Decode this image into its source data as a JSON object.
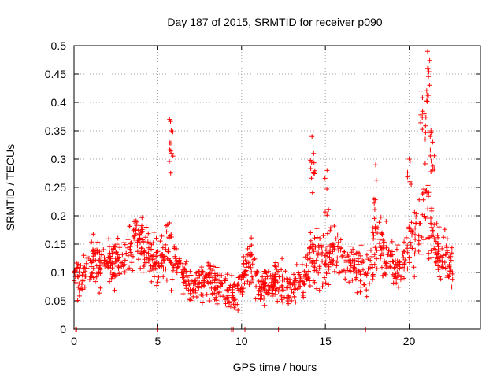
{
  "chart_data": {
    "type": "scatter",
    "title": "Day 187 of 2015, SRMTID for receiver p090",
    "xlabel": "GPS time / hours",
    "ylabel": "SRMTID / TECUs",
    "xlim": [
      0,
      24.25
    ],
    "ylim": [
      0,
      0.5
    ],
    "xticks": [
      0,
      5,
      10,
      15,
      20
    ],
    "xtick_labels": [
      "0",
      "5",
      "10",
      "15",
      "20"
    ],
    "yticks": [
      0,
      0.05,
      0.1,
      0.15,
      0.2,
      0.25,
      0.3,
      0.35,
      0.4,
      0.45,
      0.5
    ],
    "ytick_labels": [
      "0",
      "0.05",
      "0.1",
      "0.15",
      "0.2",
      "0.25",
      "0.3",
      "0.35",
      "0.4",
      "0.45",
      "0.5"
    ],
    "grid": true,
    "marker": "+",
    "color": "#ff0000",
    "point_count": 1200,
    "point_count_note": "approximate; scatter generated from the visible envelope below",
    "envelope": {
      "x": [
        0,
        1,
        2,
        3,
        3.7,
        4.5,
        5,
        5.7,
        6.5,
        7,
        8,
        9,
        9.5,
        10,
        10.5,
        11,
        12,
        13,
        13.5,
        14.2,
        15,
        15.5,
        16.5,
        17.5,
        18,
        18.5,
        19,
        19.5,
        20,
        20.5,
        21,
        21.5,
        22,
        22.6
      ],
      "mean": [
        0.08,
        0.12,
        0.115,
        0.13,
        0.16,
        0.13,
        0.12,
        0.14,
        0.1,
        0.07,
        0.09,
        0.07,
        0.06,
        0.08,
        0.12,
        0.07,
        0.085,
        0.07,
        0.09,
        0.13,
        0.12,
        0.14,
        0.12,
        0.1,
        0.15,
        0.14,
        0.12,
        0.11,
        0.15,
        0.17,
        0.2,
        0.15,
        0.12,
        0.12
      ],
      "spread": [
        0.04,
        0.05,
        0.05,
        0.05,
        0.06,
        0.05,
        0.05,
        0.07,
        0.05,
        0.04,
        0.05,
        0.04,
        0.035,
        0.04,
        0.06,
        0.04,
        0.04,
        0.04,
        0.045,
        0.07,
        0.06,
        0.06,
        0.06,
        0.05,
        0.07,
        0.06,
        0.05,
        0.05,
        0.06,
        0.09,
        0.12,
        0.08,
        0.06,
        0.06
      ]
    },
    "spikes": [
      {
        "x": 5.7,
        "y": 0.37
      },
      {
        "x": 5.8,
        "y": 0.35
      },
      {
        "x": 14.2,
        "y": 0.34
      },
      {
        "x": 14.3,
        "y": 0.31
      },
      {
        "x": 15.1,
        "y": 0.28
      },
      {
        "x": 18.0,
        "y": 0.29
      },
      {
        "x": 20.0,
        "y": 0.3
      },
      {
        "x": 20.7,
        "y": 0.42
      },
      {
        "x": 20.9,
        "y": 0.38
      },
      {
        "x": 21.1,
        "y": 0.49
      },
      {
        "x": 21.1,
        "y": 0.46
      },
      {
        "x": 21.3,
        "y": 0.35
      },
      {
        "x": 21.4,
        "y": 0.33
      }
    ],
    "zero_markers": [
      0.1,
      0.15,
      5.0,
      9.4,
      9.5,
      10.2,
      12.2,
      17.4
    ]
  }
}
